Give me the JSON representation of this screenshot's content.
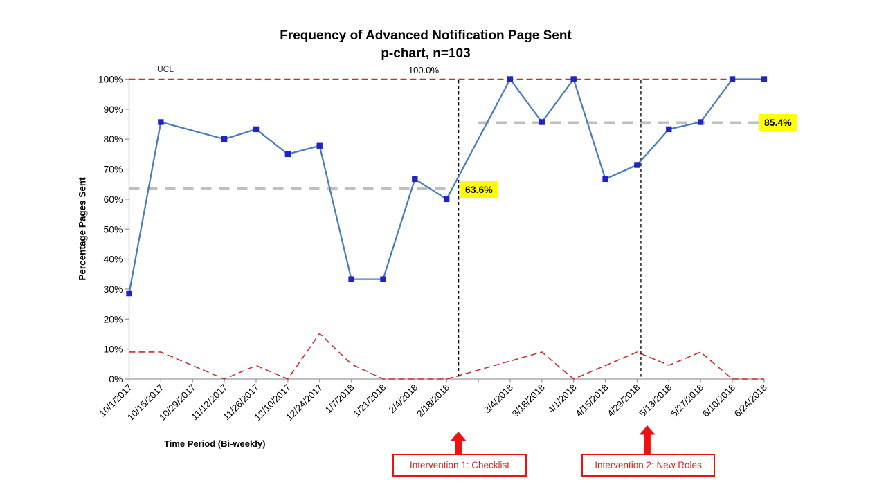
{
  "chart_data": {
    "type": "line",
    "title": "Frequency of Advanced Notification Page Sent",
    "subtitle": "p-chart, n=103",
    "xlabel": "Time Period (Bi-weekly)",
    "ylabel": "Percentage Pages Sent",
    "ylim": [
      0,
      100
    ],
    "y_tick_step": 10,
    "y_tick_suffix": "%",
    "grid": false,
    "legend": "none",
    "categories": [
      "10/1/2017",
      "10/15/2017",
      "10/29/2017",
      "11/12/2017",
      "11/26/2017",
      "12/10/2017",
      "12/24/2017",
      "1/7/2018",
      "1/21/2018",
      "2/4/2018",
      "2/18/2018",
      "",
      "3/4/2018",
      "3/18/2018",
      "4/1/2018",
      "4/15/2018",
      "4/29/2018",
      "5/13/2018",
      "5/27/2018",
      "6/10/2018",
      "6/24/2018"
    ],
    "series": [
      {
        "name": "Percentage Pages Sent",
        "type": "line",
        "marker": "square",
        "values": [
          28.6,
          85.7,
          null,
          80.0,
          83.3,
          75.0,
          77.8,
          33.3,
          33.3,
          66.7,
          60.0,
          null,
          100,
          85.7,
          100,
          66.7,
          71.4,
          83.3,
          85.7,
          100,
          100
        ]
      },
      {
        "name": "LCL",
        "type": "line",
        "style": "dashed",
        "values": [
          9,
          9,
          4.5,
          0,
          4.5,
          0,
          15.2,
          5,
          0,
          0,
          0,
          3,
          6,
          9,
          0,
          4.5,
          9,
          4.6,
          9,
          0,
          0
        ]
      }
    ],
    "ucl": {
      "label": "UCL",
      "value": 100,
      "value_label": "100.0%"
    },
    "centerlines": [
      {
        "label": "63.6%",
        "value": 63.6,
        "from_index": 0,
        "to_index": 10.15
      },
      {
        "label": "85.4%",
        "value": 85.4,
        "from_index": 11,
        "to_index": 19.85
      }
    ],
    "interventions": [
      {
        "label": "Intervention 1: Checklist",
        "line_index": 10.38,
        "arrow_index": 10.37
      },
      {
        "label": "Intervention 2: New Roles",
        "line_index": 16.12,
        "arrow_index": 16.32
      }
    ]
  },
  "colors": {
    "series_line": "#4A7EBB",
    "marker_blue": "#2222CC",
    "control_limit_red": "#C62F2F",
    "centerline_gray": "#BFBFBF",
    "annotation_yellow": "#FFFF00",
    "intervention_red": "#EE1111",
    "axis_gray": "#9B9B9B",
    "tick_text": "#000000",
    "vline_black": "#000000"
  }
}
